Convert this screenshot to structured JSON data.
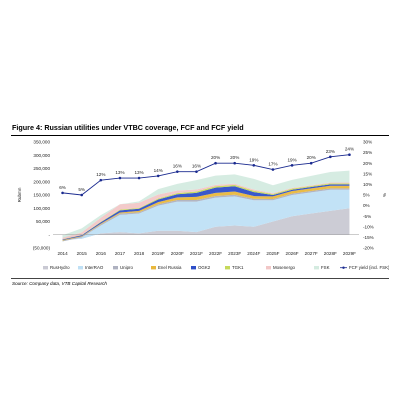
{
  "figure": {
    "title": "Figure 4: Russian utilities under VTBC coverage, FCF and FCF yield",
    "source": "Source: Company data, VTB Capital Research"
  },
  "chart_data": {
    "type": "area",
    "title": "Figure 4: Russian utilities under VTBC coverage, FCF and FCF yield",
    "ylabel": "Rubmn",
    "y2label": "%",
    "categories": [
      "2014",
      "2015",
      "2016",
      "2017",
      "2018",
      "2019F",
      "2020F",
      "2021F",
      "2022F",
      "2023F",
      "2024F",
      "2025F",
      "2026F",
      "2027F",
      "2028F",
      "2029F"
    ],
    "ylim": [
      -50000,
      350000
    ],
    "y_ticks": [
      "(50,000)",
      "-",
      "50,000",
      "100,000",
      "150,000",
      "200,000",
      "250,000",
      "300,000",
      "350,000"
    ],
    "y2lim": [
      -20,
      30
    ],
    "y2_ticks": [
      "-20%",
      "-15%",
      "-10%",
      "-5%",
      "0%",
      "5%",
      "10%",
      "15%",
      "20%",
      "25%",
      "30%"
    ],
    "legend_position": "bottom",
    "series": [
      {
        "name": "RusHydro",
        "color": "#c9c9d3",
        "values": [
          -20000,
          -15000,
          5000,
          10000,
          5000,
          15000,
          15000,
          10000,
          30000,
          35000,
          30000,
          50000,
          70000,
          80000,
          90000,
          100000
        ]
      },
      {
        "name": "InterRAO",
        "color": "#bfe0f5",
        "values": [
          -5000,
          5000,
          30000,
          65000,
          75000,
          95000,
          110000,
          115000,
          110000,
          110000,
          100000,
          80000,
          80000,
          80000,
          80000,
          70000
        ]
      },
      {
        "name": "Unipro",
        "color": "#aeb1c0",
        "values": [
          3000,
          3000,
          4000,
          5000,
          5000,
          5000,
          6000,
          6000,
          6000,
          6000,
          6000,
          5000,
          5000,
          5000,
          5000,
          5000
        ]
      },
      {
        "name": "Enel Russia",
        "color": "#e9b83d",
        "values": [
          2000,
          2000,
          3000,
          4000,
          5000,
          8000,
          10000,
          12000,
          12000,
          12000,
          10000,
          10000,
          10000,
          10000,
          10000,
          10000
        ]
      },
      {
        "name": "OGK2",
        "color": "#2e4fc8",
        "values": [
          2000,
          3000,
          5000,
          8000,
          8000,
          10000,
          12000,
          15000,
          20000,
          20000,
          15000,
          5000,
          5000,
          5000,
          5000,
          5000
        ]
      },
      {
        "name": "TGK1",
        "color": "#c6d95a",
        "values": [
          1000,
          1000,
          2000,
          3000,
          3000,
          4000,
          4000,
          5000,
          5000,
          5000,
          5000,
          4000,
          4000,
          4000,
          4000,
          4000
        ]
      },
      {
        "name": "Mosenergo",
        "color": "#f2c7c7",
        "values": [
          5000,
          10000,
          15000,
          20000,
          20000,
          15000,
          10000,
          8000,
          5000,
          5000,
          5000,
          3000,
          3000,
          3000,
          3000,
          3000
        ]
      },
      {
        "name": "FSK",
        "color": "#d4ebe0",
        "values": [
          10000,
          15000,
          10000,
          0,
          5000,
          20000,
          25000,
          35000,
          35000,
          35000,
          40000,
          30000,
          30000,
          35000,
          40000,
          45000
        ]
      }
    ],
    "line_series": {
      "name": "FCF yield (incl. FSK), rhs",
      "color": "#1a2a8f",
      "axis": "right",
      "values": [
        6,
        5,
        12,
        13,
        13,
        14,
        16,
        16,
        20,
        20,
        19,
        17,
        19,
        20,
        23,
        24
      ],
      "labels": [
        "6%",
        "5%",
        "12%",
        "13%",
        "13%",
        "14%",
        "16%",
        "16%",
        "20%",
        "20%",
        "19%",
        "17%",
        "19%",
        "20%",
        "23%",
        "24%"
      ]
    }
  }
}
